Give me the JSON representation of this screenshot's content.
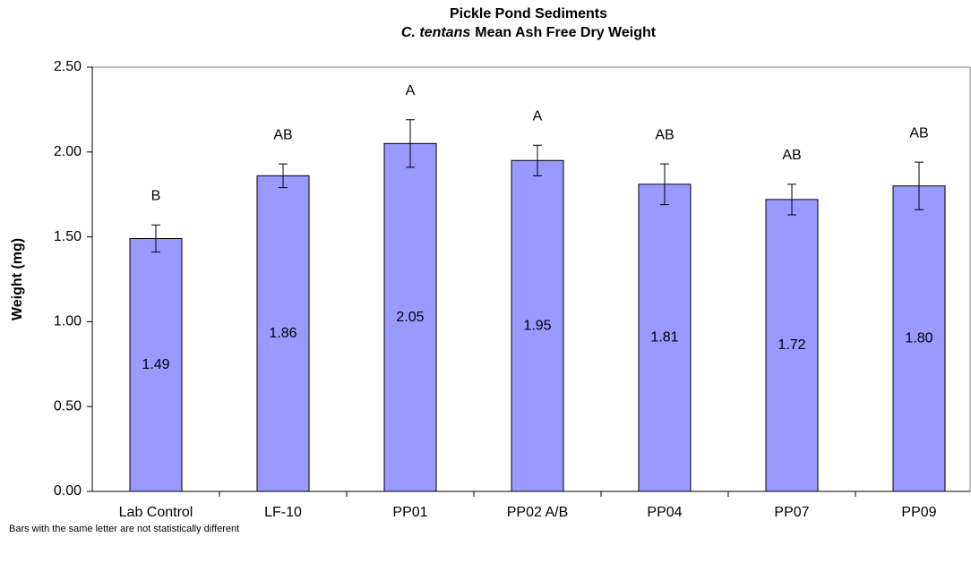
{
  "chart_data": {
    "type": "bar",
    "title": "Pickle Pond Sediments",
    "subtitle_species": "C. tentans",
    "subtitle": "Mean Ash Free Dry Weight",
    "y_label": "Weight (mg)",
    "footnote": "Bars with the same letter are not statistically different",
    "categories": [
      "Lab Control",
      "LF-10",
      "PP01",
      "PP02 A/B",
      "PP04",
      "PP07",
      "PP09"
    ],
    "values": [
      1.49,
      1.86,
      2.05,
      1.95,
      1.81,
      1.72,
      1.8
    ],
    "value_labels": [
      "1.49",
      "1.86",
      "2.05",
      "1.95",
      "1.81",
      "1.72",
      "1.80"
    ],
    "errors": [
      0.08,
      0.07,
      0.14,
      0.09,
      0.12,
      0.09,
      0.14
    ],
    "letters": [
      "B",
      "AB",
      "A",
      "A",
      "AB",
      "AB",
      "AB"
    ],
    "color": "#9999ff",
    "ylim": [
      0,
      2.5
    ],
    "yticks": [
      {
        "value": 0,
        "label": "0.00"
      },
      {
        "value": 0.5,
        "label": "0.50"
      },
      {
        "value": 1,
        "label": "1.00"
      },
      {
        "value": 1.5,
        "label": "1.50"
      },
      {
        "value": 2,
        "label": "2.00"
      },
      {
        "value": 2.5,
        "label": "2.50"
      }
    ],
    "grid": false
  }
}
